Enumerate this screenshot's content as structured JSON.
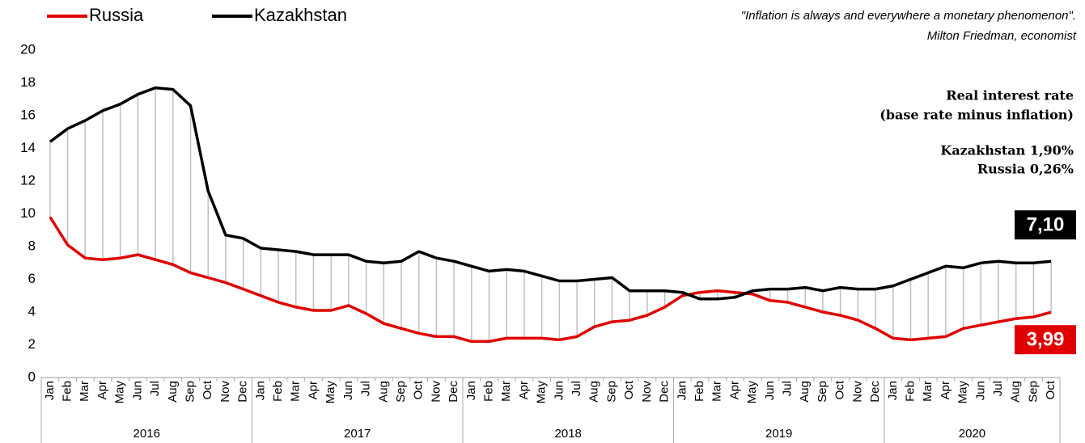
{
  "chart_data": {
    "type": "line",
    "quote": [
      "\"Inflation is always and everywhere a monetary phenomenon\".",
      "Milton Friedman, economist"
    ],
    "annotations": [
      "Real interest rate",
      "(base rate minus inflation)",
      "Kazakhstan 1,90%",
      "Russia 0,26%"
    ],
    "category_groups": [
      {
        "label": "2016",
        "categories": [
          "Jan",
          "Feb",
          "Mar",
          "Apr",
          "May",
          "Jun",
          "Jul",
          "Aug",
          "Sep",
          "Oct",
          "Nov",
          "Dec"
        ]
      },
      {
        "label": "2017",
        "categories": [
          "Jan",
          "Feb",
          "Mar",
          "Apr",
          "May",
          "Jun",
          "Jul",
          "Aug",
          "Sep",
          "Oct",
          "Nov",
          "Dec"
        ]
      },
      {
        "label": "2018",
        "categories": [
          "Jan",
          "Feb",
          "Mar",
          "Apr",
          "May",
          "Jun",
          "Jul",
          "Aug",
          "Sep",
          "Oct",
          "Nov",
          "Dec"
        ]
      },
      {
        "label": "2019",
        "categories": [
          "Jan",
          "Feb",
          "Mar",
          "Apr",
          "May",
          "Jun",
          "Jul",
          "Aug",
          "Sep",
          "Oct",
          "Nov",
          "Dec"
        ]
      },
      {
        "label": "2020",
        "categories": [
          "Jan",
          "Feb",
          "Mar",
          "Apr",
          "May",
          "Jun",
          "Jul",
          "Aug",
          "Sep",
          "Oct"
        ]
      }
    ],
    "series": [
      {
        "name": "Russia",
        "color": "#e00000",
        "values": [
          9.8,
          8.1,
          7.3,
          7.2,
          7.3,
          7.5,
          7.2,
          6.9,
          6.4,
          6.1,
          5.8,
          5.4,
          5.0,
          4.6,
          4.3,
          4.1,
          4.1,
          4.4,
          3.9,
          3.3,
          3.0,
          2.7,
          2.5,
          2.5,
          2.2,
          2.2,
          2.4,
          2.4,
          2.4,
          2.3,
          2.5,
          3.1,
          3.4,
          3.5,
          3.8,
          4.3,
          5.0,
          5.2,
          5.3,
          5.2,
          5.1,
          4.7,
          4.6,
          4.3,
          4.0,
          3.8,
          3.5,
          3.0,
          2.4,
          2.3,
          2.4,
          2.5,
          3.0,
          3.2,
          3.4,
          3.6,
          3.7,
          3.99
        ],
        "value_labels": [
          null,
          null,
          null,
          null,
          null,
          null,
          null,
          null,
          null,
          null,
          null,
          null,
          null,
          null,
          null,
          null,
          null,
          null,
          null,
          null,
          null,
          null,
          null,
          null,
          null,
          null,
          null,
          null,
          null,
          null,
          null,
          null,
          null,
          null,
          null,
          null,
          null,
          null,
          null,
          null,
          null,
          null,
          null,
          null,
          null,
          null,
          null,
          null,
          null,
          null,
          null,
          null,
          null,
          null,
          null,
          null,
          null,
          "3,99"
        ]
      },
      {
        "name": "Kazakhstan",
        "color": "#000000",
        "values": [
          14.4,
          15.2,
          15.7,
          16.3,
          16.7,
          17.3,
          17.7,
          17.6,
          16.6,
          11.4,
          8.7,
          8.5,
          7.9,
          7.8,
          7.7,
          7.5,
          7.5,
          7.5,
          7.1,
          7.0,
          7.1,
          7.7,
          7.3,
          7.1,
          6.8,
          6.5,
          6.6,
          6.5,
          6.2,
          5.9,
          5.9,
          6.0,
          6.1,
          5.3,
          5.3,
          5.3,
          5.2,
          4.8,
          4.8,
          4.9,
          5.3,
          5.4,
          5.4,
          5.5,
          5.3,
          5.5,
          5.4,
          5.4,
          5.6,
          6.0,
          6.4,
          6.8,
          6.7,
          7.0,
          7.1,
          7.0,
          7.0,
          7.1
        ],
        "value_labels": [
          null,
          null,
          null,
          null,
          null,
          null,
          null,
          null,
          null,
          null,
          null,
          null,
          null,
          null,
          null,
          null,
          null,
          null,
          null,
          null,
          null,
          null,
          null,
          null,
          null,
          null,
          null,
          null,
          null,
          null,
          null,
          null,
          null,
          null,
          null,
          null,
          null,
          null,
          null,
          null,
          null,
          null,
          null,
          null,
          null,
          null,
          null,
          null,
          null,
          null,
          null,
          null,
          null,
          null,
          null,
          null,
          null,
          "7,10"
        ]
      }
    ],
    "ylim": [
      0,
      20
    ],
    "yticks": [
      0,
      2,
      4,
      6,
      8,
      10,
      12,
      14,
      16,
      18,
      20
    ],
    "grid": false,
    "drop_lines": true,
    "legend": "top-left"
  }
}
